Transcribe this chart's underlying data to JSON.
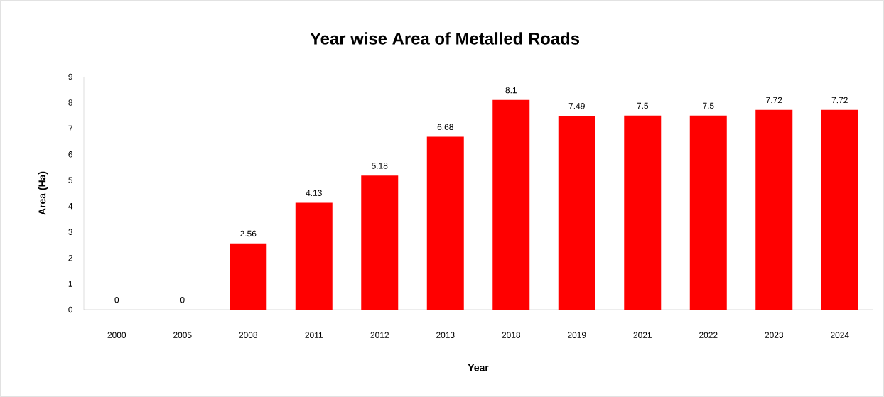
{
  "chart_data": {
    "type": "bar",
    "title": "Year wise Area of Metalled Roads",
    "xlabel": "Year",
    "ylabel": "Area (Ha)",
    "categories": [
      "2000",
      "2005",
      "2008",
      "2011",
      "2012",
      "2013",
      "2018",
      "2019",
      "2021",
      "2022",
      "2023",
      "2024"
    ],
    "values": [
      0,
      0,
      2.56,
      4.13,
      5.18,
      6.68,
      8.1,
      7.49,
      7.5,
      7.5,
      7.72,
      7.72
    ],
    "color": "#ff0000",
    "ylim": [
      0,
      9
    ],
    "yticks": [
      0,
      1,
      2,
      3,
      4,
      5,
      6,
      7,
      8,
      9
    ],
    "grid": false,
    "data_labels": true
  }
}
